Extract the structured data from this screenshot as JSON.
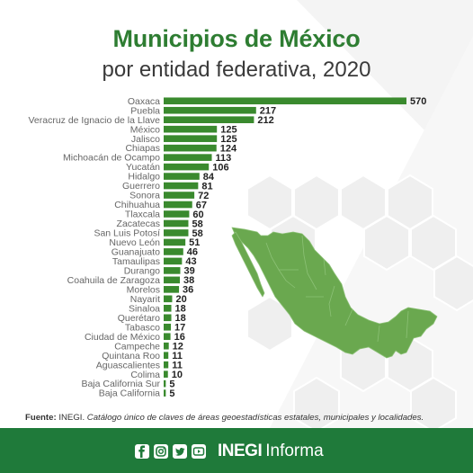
{
  "header": {
    "title": "Municipios de México",
    "subtitle": "por entidad federativa, 2020"
  },
  "colors": {
    "bar": "#3a8a2e",
    "brand_green": "#1f7a3a",
    "map_green": "#6aa84f",
    "hexagon": "#f2f2f2"
  },
  "chart_data": {
    "type": "bar",
    "orientation": "horizontal",
    "title": "Municipios de México",
    "subtitle": "por entidad federativa, 2020",
    "categories": [
      "Oaxaca",
      "Puebla",
      "Veracruz de Ignacio de la Llave",
      "México",
      "Jalisco",
      "Chiapas",
      "Michoacán de Ocampo",
      "Yucatán",
      "Hidalgo",
      "Guerrero",
      "Sonora",
      "Chihuahua",
      "Tlaxcala",
      "Zacatecas",
      "San Luis Potosí",
      "Nuevo León",
      "Guanajuato",
      "Tamaulipas",
      "Durango",
      "Coahuila de Zaragoza",
      "Morelos",
      "Nayarit",
      "Sinaloa",
      "Querétaro",
      "Tabasco",
      "Ciudad de México",
      "Campeche",
      "Quintana Roo",
      "Aguascalientes",
      "Colima",
      "Baja California Sur",
      "Baja California"
    ],
    "values": [
      570,
      217,
      212,
      125,
      125,
      124,
      113,
      106,
      84,
      81,
      72,
      67,
      60,
      58,
      58,
      51,
      46,
      43,
      39,
      38,
      36,
      20,
      18,
      18,
      17,
      16,
      12,
      11,
      11,
      10,
      5,
      5
    ],
    "xlim": [
      0,
      570
    ],
    "grid": false,
    "legend": "none"
  },
  "source": {
    "label": "Fuente:",
    "org": "INEGI.",
    "text": "Catálogo único de claves de áreas geoestadísticas estatales, municipales y localidades."
  },
  "footer": {
    "icons": [
      "facebook-icon",
      "instagram-icon",
      "twitter-icon",
      "youtube-icon"
    ],
    "brand_bold": "INEGI",
    "brand": "Informa"
  }
}
